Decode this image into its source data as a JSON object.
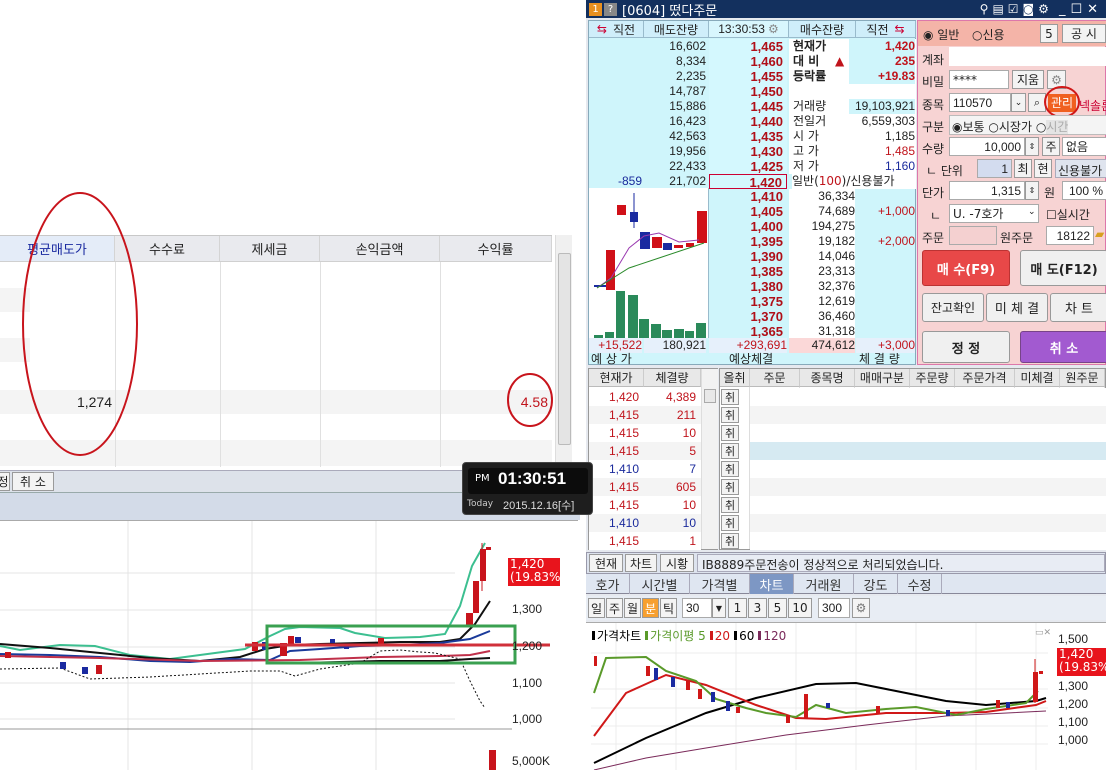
{
  "balance_table": {
    "columns": [
      "평균매도가",
      "수수료",
      "제세금",
      "손익금액",
      "수익률"
    ],
    "row": {
      "avg_sell_price": "1,274",
      "return_rate": "4.58"
    },
    "bottom_buttons": [
      "정",
      "취 소"
    ]
  },
  "clock": {
    "ampm": "PM",
    "time": "01:30:51",
    "today_label": "Today",
    "date": "2015.12.16[수]"
  },
  "left_chart": {
    "current_price": "1,420",
    "current_change": "(19.83%)",
    "y_ticks": [
      "1,300",
      "1,200",
      "1,100",
      "1,000"
    ],
    "volume_tick": "5,000K"
  },
  "window": {
    "badge1": "1",
    "badge2": "?",
    "title": "[0604] 떴다주문",
    "orderbook": {
      "headers": [
        "직전",
        "매도잔량",
        "13:30:53",
        "매수잔량",
        "직전"
      ],
      "asks": [
        {
          "prev": "",
          "qty": "16,602",
          "price": "1,465"
        },
        {
          "prev": "",
          "qty": "8,334",
          "price": "1,460"
        },
        {
          "prev": "",
          "qty": "2,235",
          "price": "1,455"
        },
        {
          "prev": "",
          "qty": "14,787",
          "price": "1,450"
        },
        {
          "prev": "",
          "qty": "15,886",
          "price": "1,445"
        },
        {
          "prev": "",
          "qty": "16,423",
          "price": "1,440"
        },
        {
          "prev": "",
          "qty": "42,563",
          "price": "1,435"
        },
        {
          "prev": "",
          "qty": "19,956",
          "price": "1,430"
        },
        {
          "prev": "",
          "qty": "22,433",
          "price": "1,425"
        },
        {
          "prev": "-859",
          "qty": "21,702",
          "price": "1,420"
        }
      ],
      "info": [
        {
          "label": "현재가",
          "value": "1,420",
          "color": "red",
          "bold": true
        },
        {
          "label": "대  비",
          "arrow": "▲",
          "value": "235",
          "color": "red",
          "bold": true
        },
        {
          "label": "등락률",
          "value": "+19.83",
          "color": "red",
          "bold": true
        },
        {
          "label": "",
          "value": ""
        },
        {
          "label": "거래량",
          "value": "19,103,921",
          "color": "black"
        },
        {
          "label": "전일거",
          "value": "6,559,303",
          "color": "black"
        },
        {
          "label": "시  가",
          "value": "1,185",
          "color": "black"
        },
        {
          "label": "고  가",
          "value": "1,485",
          "color": "red"
        },
        {
          "label": "저  가",
          "value": "1,160",
          "color": "blue"
        }
      ],
      "margin_info": {
        "pre": "일반(",
        "value": "100",
        "post": ")/신용불가"
      },
      "bids": [
        {
          "price": "1,410",
          "qty": "36,334",
          "prev": ""
        },
        {
          "price": "1,405",
          "qty": "74,689",
          "prev": "+1,000"
        },
        {
          "price": "1,400",
          "qty": "194,275",
          "prev": ""
        },
        {
          "price": "1,395",
          "qty": "19,182",
          "prev": "+2,000"
        },
        {
          "price": "1,390",
          "qty": "14,046",
          "prev": ""
        },
        {
          "price": "1,385",
          "qty": "23,313",
          "prev": ""
        },
        {
          "price": "1,380",
          "qty": "32,376",
          "prev": ""
        },
        {
          "price": "1,375",
          "qty": "12,619",
          "prev": ""
        },
        {
          "price": "1,370",
          "qty": "36,460",
          "prev": ""
        },
        {
          "price": "1,365",
          "qty": "31,318",
          "prev": ""
        }
      ],
      "footer": {
        "prev_ask": "+15,522",
        "ask_total": "180,921",
        "expected": "+293,691",
        "bid_total": "474,612",
        "prev_bid": "+3,000",
        "label_expected_price": "예 상 가",
        "label_expected_exec": "예상체결",
        "label_exec_qty": "체 결 량"
      }
    },
    "order_panel": {
      "radio_general": "일반",
      "radio_credit": "신용",
      "count": "5",
      "notice_btn": "공 시",
      "account_label": "계좌",
      "account_value": "",
      "password_label": "비밀",
      "password_value": "****",
      "clear_btn": "지움",
      "stock_label": "종목",
      "stock_code": "110570",
      "manage_badge": "관리",
      "stock_name": "넥솔론",
      "type_label": "구분",
      "type_normal": "보통",
      "type_market": "시장가",
      "type_time": "시간",
      "qty_label": "수량",
      "qty_value": "10,000",
      "qty_unit": "주",
      "qty_option": "없음",
      "unit_label": "ㄴ 단위",
      "unit_value": "1",
      "max_btn": "최",
      "cur_btn": "현",
      "credit_status": "신용불가",
      "price_label": "단가",
      "price_value": "1,315",
      "price_unit": "원",
      "percent_value": "100 %",
      "sub_label": "ㄴ",
      "tick_option": "U. -7호가",
      "realtime_label": "실시간",
      "order_label": "주문",
      "order_value": "",
      "orig_order_label": "원주문",
      "orig_order_value": "18122",
      "buy_btn": "매  수(F9)",
      "sell_btn": "매  도(F12)",
      "balance_btn": "잔고확인",
      "unfilled_btn": "미 체 결",
      "chart_btn": "차  트",
      "modify_btn": "정  정",
      "cancel_btn": "취  소",
      "colors": {
        "buy": "#e84848",
        "cancel": "#a25ad0",
        "manage": "#f06020"
      }
    },
    "ticks": {
      "headers": [
        "현재가",
        "체결량"
      ],
      "rows": [
        {
          "price": "1,420",
          "qty": "4,389",
          "color": "red"
        },
        {
          "price": "1,415",
          "qty": "211",
          "color": "red"
        },
        {
          "price": "1,415",
          "qty": "10",
          "color": "red"
        },
        {
          "price": "1,415",
          "qty": "5",
          "color": "red"
        },
        {
          "price": "1,410",
          "qty": "7",
          "color": "blue"
        },
        {
          "price": "1,415",
          "qty": "605",
          "color": "red"
        },
        {
          "price": "1,415",
          "qty": "10",
          "color": "red"
        },
        {
          "price": "1,410",
          "qty": "10",
          "color": "blue"
        },
        {
          "price": "1,415",
          "qty": "1",
          "color": "red"
        }
      ]
    },
    "orders": {
      "headers": [
        "올취",
        "주문",
        "종목명",
        "매매구분",
        "주문량",
        "주문가격",
        "미체결",
        "원주문"
      ],
      "cancel_label": "취",
      "row_count": 9
    },
    "message_bar": {
      "buttons": [
        "현재",
        "차트",
        "시황"
      ],
      "message": "IB8889주문전송이 정상적으로 처리되었습니다."
    },
    "tabs": [
      "호가",
      "시간별",
      "가격별",
      "차트",
      "거래원",
      "강도",
      "수정"
    ],
    "active_tab": "차트",
    "chart_toolbar": {
      "periods": [
        "일",
        "주",
        "월",
        "분",
        "틱"
      ],
      "active_period": "분",
      "interval": "30",
      "quick": [
        "1",
        "3",
        "5",
        "10"
      ],
      "count": "300"
    },
    "chart": {
      "legend": [
        {
          "label": "가격차트",
          "color": "#000"
        },
        {
          "label": "가격이평 5",
          "color": "#5a9a2a"
        },
        {
          "label": "20",
          "color": "#d01818"
        },
        {
          "label": "60",
          "color": "#000"
        },
        {
          "label": "120",
          "color": "#7a2a5a"
        }
      ],
      "y_ticks": [
        "1,500",
        "1,300",
        "1,200",
        "1,100",
        "1,000"
      ],
      "current_price": "1,420",
      "current_change": "(19.83%)"
    }
  }
}
